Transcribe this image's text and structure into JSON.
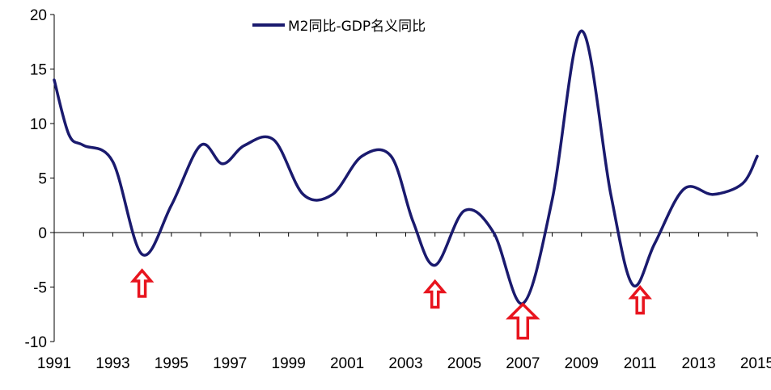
{
  "chart_data": {
    "type": "line",
    "title": "",
    "xlabel": "",
    "ylabel": "",
    "xlim": [
      1991,
      2015
    ],
    "ylim": [
      -10,
      20
    ],
    "y_ticks": [
      20,
      15,
      10,
      5,
      0,
      -5,
      -10
    ],
    "y_tick_labels": [
      "20",
      "15",
      "10",
      "5",
      "0",
      "-5",
      "-10"
    ],
    "x_ticks": [
      1991,
      1993,
      1995,
      1997,
      1999,
      2001,
      2003,
      2005,
      2007,
      2009,
      2011,
      2013,
      2015
    ],
    "x_tick_labels": [
      "1991",
      "1993",
      "1995",
      "1997",
      "1999",
      "2001",
      "2003",
      "2005",
      "2007",
      "2009",
      "2011",
      "2013",
      "2015"
    ],
    "grid": false,
    "legend": {
      "position": "top-center"
    },
    "colors": {
      "series": "#1a1a6e",
      "arrow": "#e8141e"
    },
    "series": [
      {
        "name": "M2同比-GDP名义同比",
        "x": [
          1991,
          1991.5,
          1992,
          1993,
          1994,
          1995,
          1996,
          1996.75,
          1997.5,
          1998.5,
          1999.5,
          2000.5,
          2001.5,
          2002.5,
          2003.25,
          2004,
          2005,
          2006,
          2007,
          2008,
          2009,
          2010,
          2010.75,
          2011.5,
          2012.5,
          2013.5,
          2014.5,
          2015
        ],
        "y": [
          14,
          9,
          8,
          6.5,
          -2,
          2.5,
          8,
          6.3,
          8,
          8.5,
          3.5,
          3.5,
          7,
          7,
          1,
          -3,
          2,
          0,
          -6.5,
          3,
          18.5,
          3.5,
          -4.8,
          -1,
          4,
          3.5,
          4.5,
          7
        ]
      }
    ],
    "annotations": [
      {
        "type": "up-arrow",
        "x": 1994
      },
      {
        "type": "up-arrow",
        "x": 2004
      },
      {
        "type": "up-arrow",
        "x": 2007
      },
      {
        "type": "up-arrow",
        "x": 2011
      }
    ]
  }
}
